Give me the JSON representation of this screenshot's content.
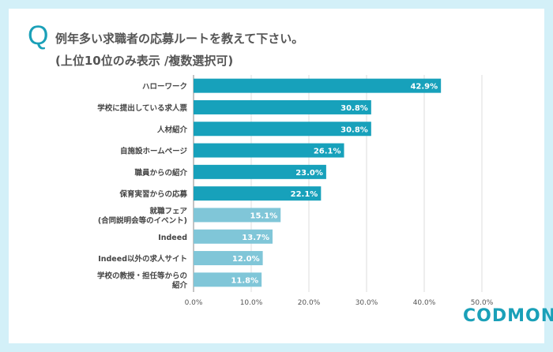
{
  "title": {
    "q": "Q",
    "line1": "例年多い求職者の応募ルートを教えて下さい。",
    "line2": "(上位10位のみ表示 /複数選択可)"
  },
  "logo": "CODMON",
  "colors": {
    "primary": "#17a1bb",
    "secondary": "#80c6d8",
    "background": "#d3f0f8"
  },
  "chart_data": {
    "type": "bar",
    "orientation": "horizontal",
    "categories": [
      "ハローワーク",
      "学校に提出している求人票",
      "人材紹介",
      "自施設ホームページ",
      "職員からの紹介",
      "保育実習からの応募",
      "就職フェア\n(合同説明会等のイベント)",
      "Indeed",
      "Indeed以外の求人サイト",
      "学校の教授・担任等からの\n紹介"
    ],
    "values": [
      42.9,
      30.8,
      30.8,
      26.1,
      23.0,
      22.1,
      15.1,
      13.7,
      12.0,
      11.8
    ],
    "data_labels": [
      "42.9%",
      "30.8%",
      "30.8%",
      "26.1%",
      "23.0%",
      "22.1%",
      "15.1%",
      "13.7%",
      "12.0%",
      "11.8%"
    ],
    "xlim": [
      0,
      50
    ],
    "ticks": [
      "0.0%",
      "10.0%",
      "20.0%",
      "30.0%",
      "40.0%",
      "50.0%"
    ],
    "grid": true
  }
}
